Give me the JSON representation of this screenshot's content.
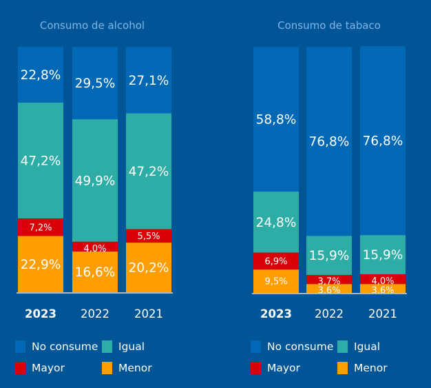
{
  "colors": {
    "background": "#005596",
    "No consume": "#0068b5",
    "Igual": "#2dada5",
    "Mayor": "#d90009",
    "Menor": "#ff9e00",
    "title": "#7fb5e8",
    "baseline": "#aab8c8",
    "text": "#ffffff"
  },
  "legend": [
    {
      "key": "No consume",
      "label": "No consume"
    },
    {
      "key": "Igual",
      "label": "Igual"
    },
    {
      "key": "Mayor",
      "label": "Mayor"
    },
    {
      "key": "Menor",
      "label": "Menor"
    }
  ],
  "chart_data": [
    {
      "type": "bar",
      "stacked": true,
      "title": "Consumo de alcohol",
      "categories": [
        "2023",
        "2022",
        "2021"
      ],
      "bold_category": "2023",
      "stack_order_bottom_to_top": [
        "Menor",
        "Mayor",
        "Igual",
        "No consume"
      ],
      "ylim": [
        0,
        100
      ],
      "grid": false,
      "legend_position": "bottom",
      "series": [
        {
          "name": "No consume",
          "values": [
            22.8,
            29.5,
            27.1
          ],
          "labels": [
            "22,8%",
            "29,5%",
            "27,1%"
          ]
        },
        {
          "name": "Igual",
          "values": [
            47.2,
            49.9,
            47.2
          ],
          "labels": [
            "47,2%",
            "49,9%",
            "47,2%"
          ]
        },
        {
          "name": "Mayor",
          "values": [
            7.2,
            4.0,
            5.5
          ],
          "labels": [
            "7,2%",
            "4,0%",
            "5,5%"
          ]
        },
        {
          "name": "Menor",
          "values": [
            22.9,
            16.6,
            20.2
          ],
          "labels": [
            "22,9%",
            "16,6%",
            "20,2%"
          ]
        }
      ]
    },
    {
      "type": "bar",
      "stacked": true,
      "title": "Consumo de tabaco",
      "categories": [
        "2023",
        "2022",
        "2021"
      ],
      "bold_category": "2023",
      "stack_order_bottom_to_top": [
        "Menor",
        "Mayor",
        "Igual",
        "No consume"
      ],
      "ylim": [
        0,
        100
      ],
      "grid": false,
      "legend_position": "bottom",
      "series": [
        {
          "name": "No consume",
          "values": [
            58.8,
            76.8,
            76.8
          ],
          "labels": [
            "58,8%",
            "76,8%",
            "76,8%"
          ]
        },
        {
          "name": "Igual",
          "values": [
            24.8,
            15.9,
            15.9
          ],
          "labels": [
            "24,8%",
            "15,9%",
            "15,9%"
          ]
        },
        {
          "name": "Mayor",
          "values": [
            6.9,
            3.7,
            4.0
          ],
          "labels": [
            "6,9%",
            "3,7%",
            "4,0%"
          ]
        },
        {
          "name": "Menor",
          "values": [
            9.5,
            3.6,
            3.6
          ],
          "labels": [
            "9,5%",
            "3,6%",
            "3,6%"
          ]
        }
      ]
    }
  ]
}
